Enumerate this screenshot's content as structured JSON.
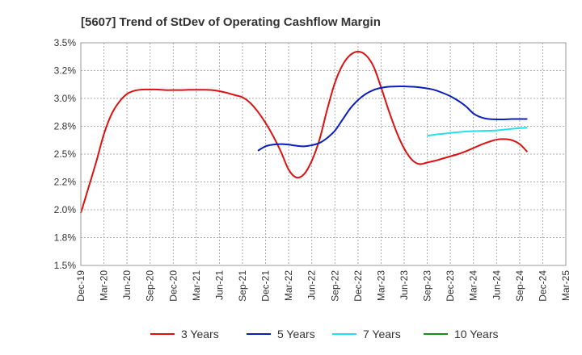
{
  "chart_data": {
    "type": "line",
    "title": "[5607]  Trend of StDev of Operating Cashflow Margin",
    "xlabel": "",
    "ylabel": "",
    "ylim": [
      1.5,
      3.5
    ],
    "y_ticks": [
      "1.5%",
      "1.8%",
      "2.0%",
      "2.2%",
      "2.5%",
      "2.8%",
      "3.0%",
      "3.2%",
      "3.5%"
    ],
    "x_tick_labels": [
      "Dec-19",
      "Mar-20",
      "Jun-20",
      "Sep-20",
      "Dec-20",
      "Mar-21",
      "Jun-21",
      "Sep-21",
      "Dec-21",
      "Mar-22",
      "Jun-22",
      "Sep-22",
      "Dec-22",
      "Mar-23",
      "Jun-23",
      "Sep-23",
      "Dec-23",
      "Mar-24",
      "Jun-24",
      "Sep-24",
      "Dec-24",
      "Mar-25"
    ],
    "grid": true,
    "legend_position": "bottom",
    "series": [
      {
        "name": "3 Years",
        "color": "#dd1111",
        "points": [
          [
            "Dec-19",
            1.97
          ],
          [
            "Jan-20",
            2.2
          ],
          [
            "Feb-20",
            2.43
          ],
          [
            "Mar-20",
            2.68
          ],
          [
            "Apr-20",
            2.86
          ],
          [
            "May-20",
            2.97
          ],
          [
            "Jun-20",
            3.04
          ],
          [
            "Jul-20",
            3.07
          ],
          [
            "Aug-20",
            3.08
          ],
          [
            "Sep-20",
            3.08
          ],
          [
            "Oct-20",
            3.08
          ],
          [
            "Nov-20",
            3.075
          ],
          [
            "Dec-20",
            3.075
          ],
          [
            "Jan-21",
            3.075
          ],
          [
            "Feb-21",
            3.078
          ],
          [
            "Mar-21",
            3.078
          ],
          [
            "Apr-21",
            3.078
          ],
          [
            "May-21",
            3.075
          ],
          [
            "Jun-21",
            3.065
          ],
          [
            "Jul-21",
            3.05
          ],
          [
            "Aug-21",
            3.03
          ],
          [
            "Sep-21",
            3.01
          ],
          [
            "Oct-21",
            2.96
          ],
          [
            "Nov-21",
            2.88
          ],
          [
            "Dec-21",
            2.78
          ],
          [
            "Jan-22",
            2.66
          ],
          [
            "Feb-22",
            2.52
          ],
          [
            "Mar-22",
            2.36
          ],
          [
            "Apr-22",
            2.29
          ],
          [
            "May-22",
            2.32
          ],
          [
            "Jun-22",
            2.44
          ],
          [
            "Jul-22",
            2.63
          ],
          [
            "Aug-22",
            2.9
          ],
          [
            "Sep-22",
            3.14
          ],
          [
            "Oct-22",
            3.3
          ],
          [
            "Nov-22",
            3.39
          ],
          [
            "Dec-22",
            3.42
          ],
          [
            "Jan-23",
            3.39
          ],
          [
            "Feb-23",
            3.29
          ],
          [
            "Mar-23",
            3.1
          ],
          [
            "Apr-23",
            2.89
          ],
          [
            "May-23",
            2.7
          ],
          [
            "Jun-23",
            2.55
          ],
          [
            "Jul-23",
            2.45
          ],
          [
            "Aug-23",
            2.41
          ],
          [
            "Sep-23",
            2.425
          ],
          [
            "Oct-23",
            2.44
          ],
          [
            "Nov-23",
            2.46
          ],
          [
            "Dec-23",
            2.48
          ],
          [
            "Jan-24",
            2.5
          ],
          [
            "Feb-24",
            2.525
          ],
          [
            "Mar-24",
            2.555
          ],
          [
            "Apr-24",
            2.585
          ],
          [
            "May-24",
            2.61
          ],
          [
            "Jun-24",
            2.63
          ],
          [
            "Jul-24",
            2.635
          ],
          [
            "Aug-24",
            2.625
          ],
          [
            "Sep-24",
            2.59
          ],
          [
            "Oct-24",
            2.52
          ]
        ]
      },
      {
        "name": "5 Years",
        "color": "#0a1ebe",
        "points": [
          [
            "Nov-21",
            2.53
          ],
          [
            "Dec-21",
            2.57
          ],
          [
            "Jan-22",
            2.585
          ],
          [
            "Feb-22",
            2.59
          ],
          [
            "Mar-22",
            2.585
          ],
          [
            "Apr-22",
            2.575
          ],
          [
            "May-22",
            2.57
          ],
          [
            "Jun-22",
            2.58
          ],
          [
            "Jul-22",
            2.6
          ],
          [
            "Aug-22",
            2.645
          ],
          [
            "Sep-22",
            2.71
          ],
          [
            "Oct-22",
            2.81
          ],
          [
            "Nov-22",
            2.91
          ],
          [
            "Dec-22",
            2.985
          ],
          [
            "Jan-23",
            3.04
          ],
          [
            "Feb-23",
            3.075
          ],
          [
            "Mar-23",
            3.095
          ],
          [
            "Apr-23",
            3.105
          ],
          [
            "May-23",
            3.108
          ],
          [
            "Jun-23",
            3.108
          ],
          [
            "Jul-23",
            3.105
          ],
          [
            "Aug-23",
            3.1
          ],
          [
            "Sep-23",
            3.09
          ],
          [
            "Oct-23",
            3.075
          ],
          [
            "Nov-23",
            3.05
          ],
          [
            "Dec-23",
            3.02
          ],
          [
            "Jan-24",
            2.98
          ],
          [
            "Feb-24",
            2.93
          ],
          [
            "Mar-24",
            2.865
          ],
          [
            "Apr-24",
            2.83
          ],
          [
            "May-24",
            2.815
          ],
          [
            "Jun-24",
            2.812
          ],
          [
            "Jul-24",
            2.812
          ],
          [
            "Aug-24",
            2.815
          ],
          [
            "Sep-24",
            2.815
          ],
          [
            "Oct-24",
            2.815
          ]
        ]
      },
      {
        "name": "7 Years",
        "color": "#22e0ee",
        "points": [
          [
            "Sep-23",
            2.665
          ],
          [
            "Oct-23",
            2.675
          ],
          [
            "Nov-23",
            2.682
          ],
          [
            "Dec-23",
            2.69
          ],
          [
            "Jan-24",
            2.697
          ],
          [
            "Feb-24",
            2.703
          ],
          [
            "Mar-24",
            2.706
          ],
          [
            "Apr-24",
            2.708
          ],
          [
            "May-24",
            2.71
          ],
          [
            "Jun-24",
            2.713
          ],
          [
            "Jul-24",
            2.72
          ],
          [
            "Aug-24",
            2.727
          ],
          [
            "Sep-24",
            2.733
          ],
          [
            "Oct-24",
            2.738
          ]
        ]
      },
      {
        "name": "10 Years",
        "color": "#1a8c1a",
        "points": []
      }
    ]
  }
}
